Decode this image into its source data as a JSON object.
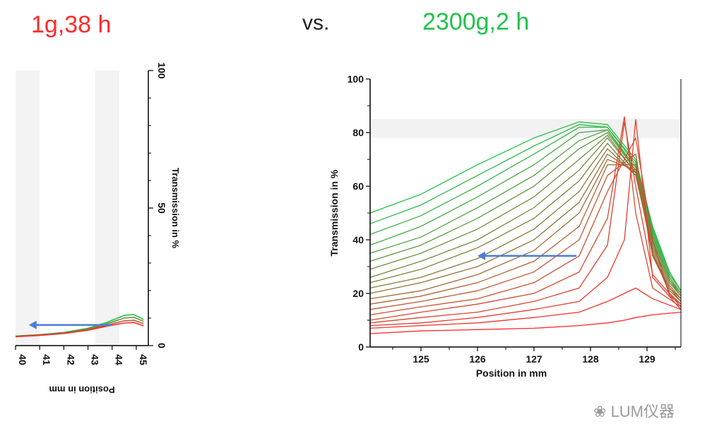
{
  "header": {
    "left_title": "1g,38 h",
    "vs": "vs.",
    "right_title": "2300g,2 h"
  },
  "colors": {
    "red": "#ff2a2a",
    "green": "#22c24a",
    "arrow": "#4a7fd6"
  },
  "watermark": {
    "text": "LUM仪器",
    "icon": "wechat-icon"
  },
  "chart_data": [
    {
      "type": "line",
      "orientation": "rotated-90",
      "xlabel": "Position in mm",
      "ylabel": "Transmission in %",
      "xlim": [
        40,
        45.5
      ],
      "ylim": [
        0,
        100
      ],
      "x_ticks": [
        "40",
        "41",
        "42",
        "43",
        "44",
        "45"
      ],
      "y_ticks": [
        "0",
        "50",
        "100"
      ],
      "series": [
        {
          "x": [
            40,
            41,
            42,
            43,
            43.8,
            44.5,
            44.9,
            45.3
          ],
          "y": [
            3.5,
            4.0,
            4.8,
            6.3,
            8.5,
            11.0,
            11.3,
            9.5
          ]
        },
        {
          "x": [
            40,
            41,
            42,
            43,
            43.8,
            44.5,
            44.9,
            45.3
          ],
          "y": [
            3.4,
            3.9,
            4.6,
            6.0,
            8.0,
            10.0,
            10.3,
            8.8
          ]
        },
        {
          "x": [
            40,
            41,
            42,
            43,
            43.8,
            44.5,
            44.9,
            45.3
          ],
          "y": [
            3.3,
            3.8,
            4.5,
            5.8,
            7.5,
            9.0,
            9.2,
            8.0
          ]
        },
        {
          "x": [
            40,
            41,
            42,
            43,
            43.8,
            44.5,
            44.9,
            45.3
          ],
          "y": [
            3.2,
            3.7,
            4.4,
            5.6,
            7.1,
            8.2,
            8.4,
            7.2
          ]
        }
      ],
      "annotation": "arrow pointing toward lower position"
    },
    {
      "type": "line",
      "xlabel": "Position in mm",
      "ylabel": "Transmission in %",
      "xlim": [
        124.1,
        129.6
      ],
      "ylim": [
        0,
        100
      ],
      "x_ticks": [
        "125",
        "126",
        "127",
        "128",
        "129"
      ],
      "y_ticks": [
        "0",
        "20",
        "40",
        "60",
        "80",
        "100"
      ],
      "series": [
        {
          "x": [
            124.1,
            125,
            126,
            127,
            127.8,
            128.3,
            128.8,
            129.1,
            129.4,
            129.6
          ],
          "y": [
            50,
            57,
            68,
            78,
            84,
            83,
            70,
            45,
            28,
            21
          ]
        },
        {
          "x": [
            124.1,
            125,
            126,
            127,
            127.8,
            128.3,
            128.8,
            129.1,
            129.4,
            129.6
          ],
          "y": [
            46,
            53,
            64,
            75,
            83,
            82,
            69,
            44,
            27,
            21
          ]
        },
        {
          "x": [
            124.1,
            125,
            126,
            127,
            127.8,
            128.3,
            128.8,
            129.1,
            129.4,
            129.6
          ],
          "y": [
            42,
            49,
            60,
            72,
            82,
            82,
            68,
            43,
            27,
            21
          ]
        },
        {
          "x": [
            124.1,
            125,
            126,
            127,
            127.8,
            128.3,
            128.8,
            129.1,
            129.4,
            129.6
          ],
          "y": [
            38,
            45,
            56,
            68,
            80,
            81,
            67,
            42,
            26,
            20
          ]
        },
        {
          "x": [
            124.1,
            125,
            126,
            127,
            127.8,
            128.3,
            128.8,
            129.1,
            129.4,
            129.6
          ],
          "y": [
            35,
            41,
            52,
            64,
            77,
            81,
            66,
            41,
            26,
            20
          ]
        },
        {
          "x": [
            124.1,
            125,
            126,
            127,
            127.8,
            128.3,
            128.8,
            129.1,
            129.4,
            129.6
          ],
          "y": [
            32,
            38,
            48,
            60,
            74,
            80,
            66,
            40,
            25,
            20
          ]
        },
        {
          "x": [
            124.1,
            125,
            126,
            127,
            127.8,
            128.3,
            128.8,
            129.1,
            129.4,
            129.6
          ],
          "y": [
            29,
            35,
            44,
            56,
            70,
            79,
            65,
            39,
            25,
            19
          ]
        },
        {
          "x": [
            124.1,
            125,
            126,
            127,
            127.8,
            128.3,
            128.8,
            129.1,
            129.4,
            129.6
          ],
          "y": [
            26,
            32,
            40,
            52,
            66,
            78,
            65,
            38,
            24,
            19
          ]
        },
        {
          "x": [
            124.1,
            125,
            126,
            127,
            127.8,
            128.3,
            128.8,
            129.1,
            129.4,
            129.6
          ],
          "y": [
            24,
            29,
            37,
            48,
            62,
            76,
            64,
            37,
            24,
            19
          ]
        },
        {
          "x": [
            124.1,
            125,
            126,
            127,
            127.8,
            128.3,
            128.8,
            129.1,
            129.4,
            129.6
          ],
          "y": [
            22,
            26,
            33,
            44,
            58,
            74,
            64,
            36,
            23,
            18
          ]
        },
        {
          "x": [
            124.1,
            125,
            126,
            127,
            127.8,
            128.3,
            128.8,
            129.1,
            129.4,
            129.6
          ],
          "y": [
            20,
            24,
            30,
            40,
            54,
            72,
            65,
            35,
            22,
            18
          ]
        },
        {
          "x": [
            124.1,
            125,
            126,
            127,
            127.8,
            128.3,
            128.8,
            129.1,
            129.4,
            129.6
          ],
          "y": [
            18,
            21,
            27,
            36,
            50,
            70,
            66,
            34,
            22,
            17
          ]
        },
        {
          "x": [
            124.1,
            125,
            126,
            127,
            127.8,
            128.3,
            128.8,
            129.1,
            129.4,
            129.6
          ],
          "y": [
            16,
            19,
            24,
            32,
            45,
            68,
            68,
            34,
            21,
            17
          ]
        },
        {
          "x": [
            124.1,
            125,
            126,
            127,
            127.8,
            128.3,
            128.8,
            129.1,
            129.4,
            129.6
          ],
          "y": [
            14,
            17,
            21,
            28,
            40,
            64,
            72,
            35,
            20,
            16
          ]
        },
        {
          "x": [
            124.1,
            125,
            126,
            127,
            127.8,
            128.3,
            128.8,
            129.1,
            129.4,
            129.6
          ],
          "y": [
            12,
            15,
            18,
            24,
            34,
            58,
            78,
            40,
            19,
            16
          ]
        },
        {
          "x": [
            124.1,
            125,
            126,
            127,
            127.8,
            128.3,
            128.6,
            128.8,
            129.1,
            129.6
          ],
          "y": [
            10,
            13,
            16,
            20,
            28,
            48,
            86,
            50,
            22,
            15
          ]
        },
        {
          "x": [
            124.1,
            125,
            126,
            127,
            127.8,
            128.3,
            128.6,
            128.8,
            129.1,
            129.6
          ],
          "y": [
            9,
            11,
            13,
            17,
            22,
            38,
            84,
            60,
            27,
            15
          ]
        },
        {
          "x": [
            124.1,
            125,
            126,
            127,
            127.8,
            128.3,
            128.6,
            128.8,
            129.1,
            129.6
          ],
          "y": [
            8,
            9,
            11,
            14,
            17,
            26,
            40,
            85,
            26,
            14
          ]
        },
        {
          "x": [
            124.1,
            125,
            126,
            127,
            127.8,
            128.3,
            128.6,
            128.8,
            129.1,
            129.6
          ],
          "y": [
            7,
            8,
            9,
            11,
            13,
            17,
            20,
            22,
            18,
            14
          ]
        },
        {
          "x": [
            124.1,
            125,
            126,
            127,
            127.8,
            128.3,
            128.6,
            128.8,
            129.1,
            129.6
          ],
          "y": [
            5,
            6,
            6.5,
            7,
            8,
            9,
            10,
            11,
            12,
            13
          ]
        }
      ],
      "annotation": "arrow pointing toward lower position"
    }
  ]
}
